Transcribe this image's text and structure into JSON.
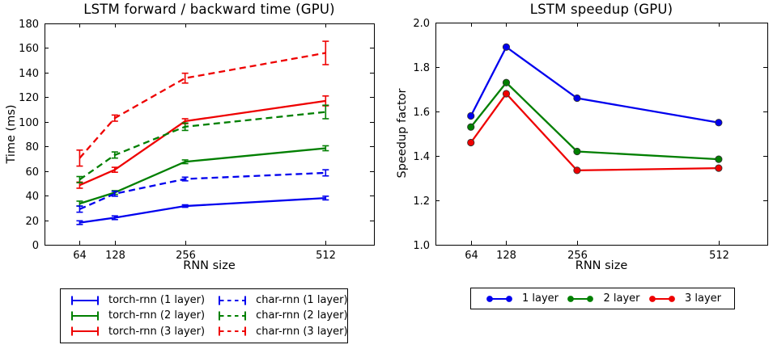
{
  "colors": {
    "blue": "#0000ee",
    "green": "#007f00",
    "red": "#ee0000",
    "axis": "#000000",
    "background": "#ffffff"
  },
  "chart_data": [
    {
      "type": "line",
      "name": "lstm-time",
      "title": "LSTM forward / backward time (GPU)",
      "xlabel": "RNN size",
      "ylabel": "Time (ms)",
      "x": [
        64,
        128,
        256,
        512
      ],
      "xlim": [
        0,
        600
      ],
      "ylim": [
        0,
        180
      ],
      "xticks": [
        64,
        128,
        256,
        512
      ],
      "xticklabels": [
        "64",
        "128",
        "256",
        "512"
      ],
      "yticks": [
        0,
        20,
        40,
        60,
        80,
        100,
        120,
        140,
        160,
        180
      ],
      "yticklabels": [
        "0",
        "20",
        "40",
        "60",
        "80",
        "100",
        "120",
        "140",
        "160",
        "180"
      ],
      "grid": false,
      "legend_position": "below",
      "series": [
        {
          "name": "torch-rnn (1 layer)",
          "color": "#0000ee",
          "style": "solid",
          "values": [
            18,
            22,
            31.5,
            38
          ],
          "err": [
            1.5,
            1.5,
            1,
            1.5
          ]
        },
        {
          "name": "torch-rnn (2 layer)",
          "color": "#007f00",
          "style": "solid",
          "values": [
            33.5,
            42.5,
            67.5,
            78.5
          ],
          "err": [
            2,
            1.5,
            1.5,
            2
          ]
        },
        {
          "name": "torch-rnn (3 layer)",
          "color": "#ee0000",
          "style": "solid",
          "values": [
            48.5,
            61,
            100.5,
            117
          ],
          "err": [
            2.5,
            2,
            2,
            4
          ]
        },
        {
          "name": "char-rnn (1 layer)",
          "color": "#0000ee",
          "style": "dashed",
          "values": [
            29,
            41.5,
            53.5,
            58.5
          ],
          "err": [
            2.5,
            2,
            1.5,
            2.5
          ]
        },
        {
          "name": "char-rnn (2 layer)",
          "color": "#007f00",
          "style": "dashed",
          "values": [
            53,
            73,
            96,
            108
          ],
          "err": [
            2.5,
            2.5,
            3,
            5.5
          ]
        },
        {
          "name": "char-rnn (3 layer)",
          "color": "#ee0000",
          "style": "dashed",
          "values": [
            70.5,
            103,
            135.5,
            156
          ],
          "err": [
            6.5,
            2.5,
            4,
            9.5
          ]
        }
      ]
    },
    {
      "type": "line",
      "name": "lstm-speedup",
      "title": "LSTM speedup (GPU)",
      "xlabel": "RNN size",
      "ylabel": "Speedup factor",
      "x": [
        64,
        128,
        256,
        512
      ],
      "xlim": [
        0,
        600
      ],
      "ylim": [
        1.0,
        2.0
      ],
      "xticks": [
        64,
        128,
        256,
        512
      ],
      "xticklabels": [
        "64",
        "128",
        "256",
        "512"
      ],
      "yticks": [
        1.0,
        1.2,
        1.4,
        1.6,
        1.8,
        2.0
      ],
      "yticklabels": [
        "1.0",
        "1.2",
        "1.4",
        "1.6",
        "1.8",
        "2.0"
      ],
      "grid": false,
      "legend_position": "below",
      "series": [
        {
          "name": "1 layer",
          "color": "#0000ee",
          "style": "solid",
          "marker": "circle",
          "values": [
            1.58,
            1.89,
            1.66,
            1.55
          ]
        },
        {
          "name": "2 layer",
          "color": "#007f00",
          "style": "solid",
          "marker": "circle",
          "values": [
            1.53,
            1.73,
            1.42,
            1.385
          ]
        },
        {
          "name": "3 layer",
          "color": "#ee0000",
          "style": "solid",
          "marker": "circle",
          "values": [
            1.46,
            1.68,
            1.335,
            1.345
          ]
        }
      ]
    }
  ]
}
